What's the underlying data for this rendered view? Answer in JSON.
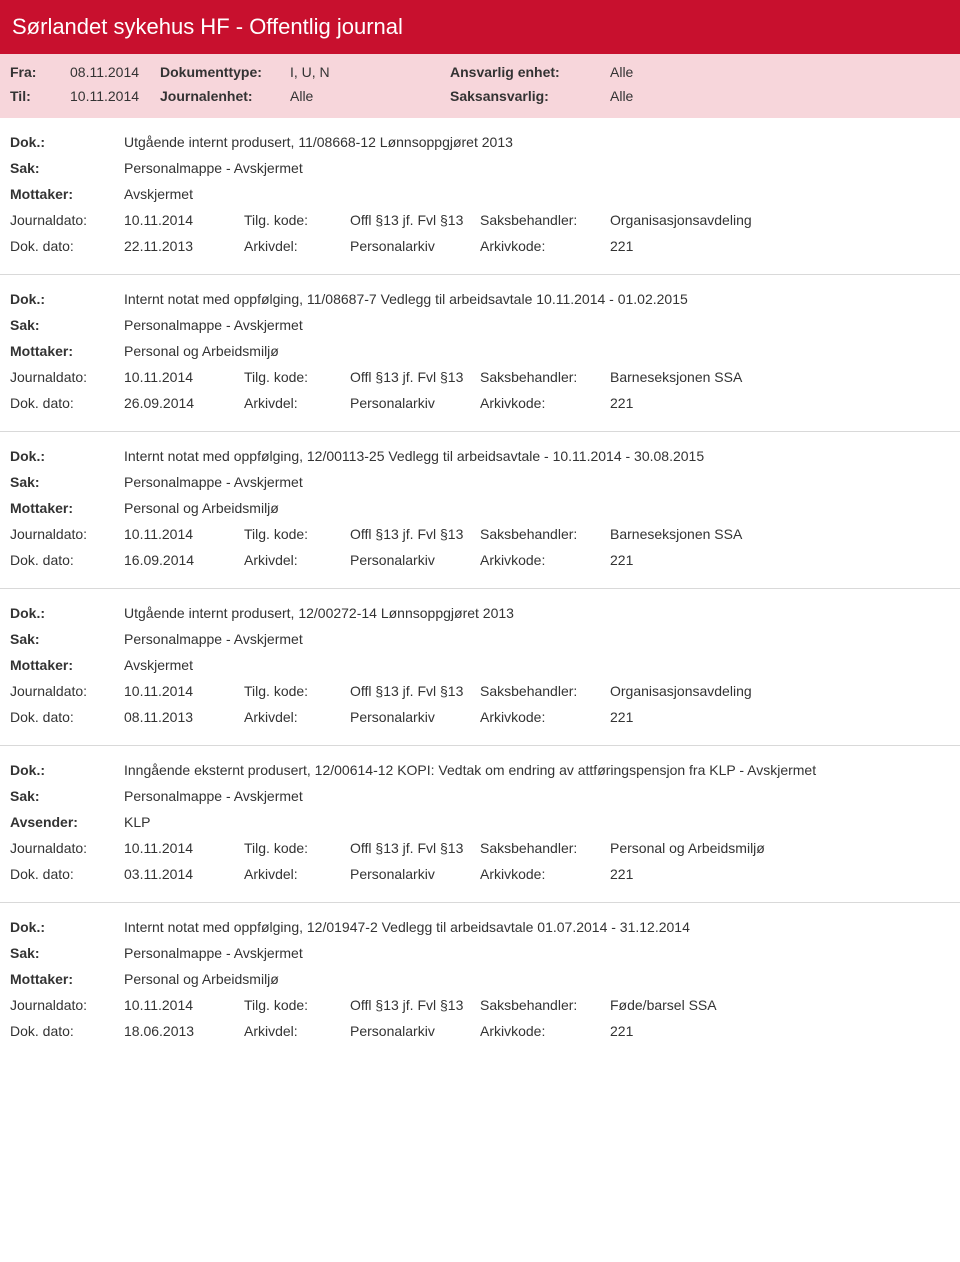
{
  "colors": {
    "headerRed": "#c8102e",
    "headerPink": "#f7d6db",
    "border": "#d9d9d9",
    "text": "#333333",
    "white": "#ffffff"
  },
  "header": {
    "title": "Sørlandet sykehus HF - Offentlig journal",
    "rows": [
      {
        "l1": "Fra:",
        "v1": "08.11.2014",
        "l2": "Dokumenttype:",
        "v2": "I, U, N",
        "l3": "Ansvarlig enhet:",
        "v3": "Alle"
      },
      {
        "l1": "Til:",
        "v1": "10.11.2014",
        "l2": "Journalenhet:",
        "v2": "Alle",
        "l3": "Saksansvarlig:",
        "v3": "Alle"
      }
    ]
  },
  "labels": {
    "dok": "Dok.:",
    "sak": "Sak:",
    "mottaker": "Mottaker:",
    "avsender": "Avsender:",
    "journaldato": "Journaldato:",
    "tilgkode": "Tilg. kode:",
    "saksbehandler": "Saksbehandler:",
    "dokdato": "Dok. dato:",
    "arkivdel": "Arkivdel:",
    "arkivkode": "Arkivkode:"
  },
  "entries": [
    {
      "dok": "Utgående internt produsert, 11/08668-12 Lønnsoppgjøret 2013",
      "sak": "Personalmappe - Avskjermet",
      "partyLabel": "Mottaker:",
      "party": "Avskjermet",
      "journaldato": "10.11.2014",
      "tilgkode": "Offl §13 jf. Fvl §13",
      "saksbehandler": "Organisasjonsavdeling",
      "dokdato": "22.11.2013",
      "arkivdel": "Personalarkiv",
      "arkivkode": "221"
    },
    {
      "dok": "Internt notat med oppfølging, 11/08687-7 Vedlegg til arbeidsavtale  10.11.2014 - 01.02.2015",
      "sak": "Personalmappe - Avskjermet",
      "partyLabel": "Mottaker:",
      "party": "Personal og Arbeidsmiljø",
      "journaldato": "10.11.2014",
      "tilgkode": "Offl §13 jf. Fvl §13",
      "saksbehandler": "Barneseksjonen SSA",
      "dokdato": "26.09.2014",
      "arkivdel": "Personalarkiv",
      "arkivkode": "221"
    },
    {
      "dok": "Internt notat med oppfølging, 12/00113-25 Vedlegg til arbeidsavtale -  10.11.2014 - 30.08.2015",
      "sak": "Personalmappe - Avskjermet",
      "partyLabel": "Mottaker:",
      "party": "Personal og Arbeidsmiljø",
      "journaldato": "10.11.2014",
      "tilgkode": "Offl §13 jf. Fvl §13",
      "saksbehandler": "Barneseksjonen SSA",
      "dokdato": "16.09.2014",
      "arkivdel": "Personalarkiv",
      "arkivkode": "221"
    },
    {
      "dok": "Utgående internt produsert, 12/00272-14 Lønnsoppgjøret 2013",
      "sak": "Personalmappe - Avskjermet",
      "partyLabel": "Mottaker:",
      "party": "Avskjermet",
      "journaldato": "10.11.2014",
      "tilgkode": "Offl §13 jf. Fvl §13",
      "saksbehandler": "Organisasjonsavdeling",
      "dokdato": "08.11.2013",
      "arkivdel": "Personalarkiv",
      "arkivkode": "221"
    },
    {
      "dok": "Inngående eksternt produsert, 12/00614-12 KOPI: Vedtak om endring av attføringspensjon fra KLP - Avskjermet",
      "sak": "Personalmappe - Avskjermet",
      "partyLabel": "Avsender:",
      "party": "KLP",
      "journaldato": "10.11.2014",
      "tilgkode": "Offl §13 jf. Fvl §13",
      "saksbehandler": "Personal og Arbeidsmiljø",
      "dokdato": "03.11.2014",
      "arkivdel": "Personalarkiv",
      "arkivkode": "221"
    },
    {
      "dok": "Internt notat med oppfølging, 12/01947-2 Vedlegg til arbeidsavtale 01.07.2014 - 31.12.2014",
      "sak": "Personalmappe - Avskjermet",
      "partyLabel": "Mottaker:",
      "party": "Personal og Arbeidsmiljø",
      "journaldato": "10.11.2014",
      "tilgkode": "Offl §13 jf. Fvl §13",
      "saksbehandler": "Føde/barsel SSA",
      "dokdato": "18.06.2013",
      "arkivdel": "Personalarkiv",
      "arkivkode": "221"
    }
  ]
}
